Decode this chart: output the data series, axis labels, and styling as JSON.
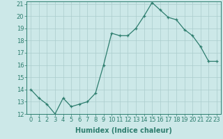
{
  "x": [
    0,
    1,
    2,
    3,
    4,
    5,
    6,
    7,
    8,
    9,
    10,
    11,
    12,
    13,
    14,
    15,
    16,
    17,
    18,
    19,
    20,
    21,
    22,
    23
  ],
  "y": [
    14.0,
    13.3,
    12.8,
    12.0,
    13.3,
    12.6,
    12.8,
    13.0,
    13.7,
    16.0,
    18.6,
    18.4,
    18.4,
    19.0,
    20.0,
    21.1,
    20.5,
    19.9,
    19.7,
    18.9,
    18.4,
    17.5,
    16.3,
    16.3
  ],
  "line_color": "#2d7d6e",
  "bg_color": "#cce8e8",
  "grid_color": "#aacccc",
  "xlabel": "Humidex (Indice chaleur)",
  "ylim": [
    12,
    21
  ],
  "xlim": [
    -0.5,
    23.5
  ],
  "yticks": [
    12,
    13,
    14,
    15,
    16,
    17,
    18,
    19,
    20,
    21
  ],
  "xticks": [
    0,
    1,
    2,
    3,
    4,
    5,
    6,
    7,
    8,
    9,
    10,
    11,
    12,
    13,
    14,
    15,
    16,
    17,
    18,
    19,
    20,
    21,
    22,
    23
  ],
  "label_fontsize": 7,
  "tick_fontsize": 6
}
